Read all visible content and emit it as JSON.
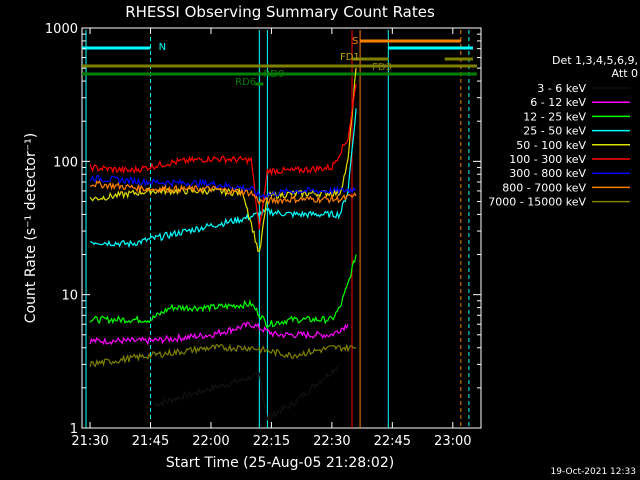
{
  "chart_data": {
    "type": "line",
    "title": "RHESSI Observing Summary Count Rates",
    "xlabel": "Start Time (25-Aug-05 21:28:02)",
    "ylabel": "Count Rate (s⁻¹ detector⁻¹)",
    "y_scale": "log",
    "ylim": [
      1,
      1000
    ],
    "xlim": [
      "21:28",
      "23:07"
    ],
    "x_ticks": [
      "21:30",
      "21:45",
      "22:00",
      "22:15",
      "22:30",
      "22:45",
      "23:00"
    ],
    "y_ticks": [
      "1",
      "10",
      "100",
      "1000"
    ],
    "legend_title": [
      "Det 1,3,4,5,6,9,",
      "Att 0"
    ],
    "legend_position": "right",
    "timestamp": "19-Oct-2021 12:33",
    "series": [
      {
        "name": "3 - 6 keV",
        "color": "#000000",
        "x": [
          "21:46",
          "22:12",
          "22:14",
          "22:20",
          "22:32"
        ],
        "values": [
          1.5,
          2.5,
          1.2,
          1.5,
          3
        ]
      },
      {
        "name": "6 - 12 keV",
        "color": "#ff00ff",
        "x": [
          "21:30",
          "21:45",
          "22:00",
          "22:10",
          "22:16",
          "22:30",
          "22:34"
        ],
        "values": [
          4.5,
          4.5,
          5,
          6,
          5,
          5,
          6
        ]
      },
      {
        "name": "12 - 25 keV",
        "color": "#00ff00",
        "x": [
          "21:30",
          "21:45",
          "21:50",
          "22:00",
          "22:10",
          "22:14",
          "22:20",
          "22:30",
          "22:32",
          "22:34",
          "22:36"
        ],
        "values": [
          6.5,
          6.5,
          8,
          8,
          8.5,
          6,
          6.5,
          6.5,
          8,
          12,
          20
        ]
      },
      {
        "name": "25 - 50 keV",
        "color": "#00ffff",
        "x": [
          "21:30",
          "21:40",
          "21:45",
          "22:00",
          "22:08",
          "22:14",
          "22:20",
          "22:32",
          "22:34",
          "22:36"
        ],
        "values": [
          25,
          24,
          26,
          33,
          37,
          42,
          40,
          40,
          60,
          250
        ]
      },
      {
        "name": "50 - 100 keV",
        "color": "#e0e000",
        "x": [
          "21:30",
          "21:45",
          "22:00",
          "22:08",
          "22:12",
          "22:14",
          "22:20",
          "22:32",
          "22:34",
          "22:36"
        ],
        "values": [
          52,
          60,
          60,
          58,
          20,
          55,
          57,
          58,
          100,
          500
        ]
      },
      {
        "name": "100 - 300 keV",
        "color": "#ff0000",
        "x": [
          "21:30",
          "21:40",
          "21:50",
          "22:00",
          "22:10",
          "22:12",
          "22:14",
          "22:20",
          "22:30",
          "22:34",
          "22:36"
        ],
        "values": [
          90,
          85,
          98,
          105,
          102,
          30,
          85,
          85,
          90,
          150,
          380
        ]
      },
      {
        "name": "300 - 800 keV",
        "color": "#0000ff",
        "x": [
          "21:30",
          "21:45",
          "22:00",
          "22:10",
          "22:12",
          "22:20",
          "22:32",
          "22:36"
        ],
        "values": [
          75,
          70,
          68,
          62,
          55,
          60,
          60,
          62
        ]
      },
      {
        "name": "800 - 7000 keV",
        "color": "#ff8000",
        "x": [
          "21:30",
          "21:45",
          "22:00",
          "22:10",
          "22:12",
          "22:20",
          "22:32",
          "22:36"
        ],
        "values": [
          68,
          62,
          62,
          58,
          50,
          52,
          52,
          55
        ]
      },
      {
        "name": "7000 - 15000 keV",
        "color": "#808000",
        "x": [
          "21:30",
          "21:45",
          "22:00",
          "22:10",
          "22:20",
          "22:30",
          "22:36"
        ],
        "values": [
          3,
          3.5,
          4,
          4,
          3.5,
          4,
          4
        ]
      }
    ],
    "annotations": [
      {
        "label": "N",
        "color": "#00ffff"
      },
      {
        "label": "S",
        "color": "#ff8000"
      },
      {
        "label": "FD1",
        "color": "#c0a000"
      },
      {
        "label": "FD3",
        "color": "#808000"
      },
      {
        "label": "RD6",
        "color": "#008000"
      },
      {
        "label": "RD9",
        "color": "#008000"
      }
    ]
  }
}
